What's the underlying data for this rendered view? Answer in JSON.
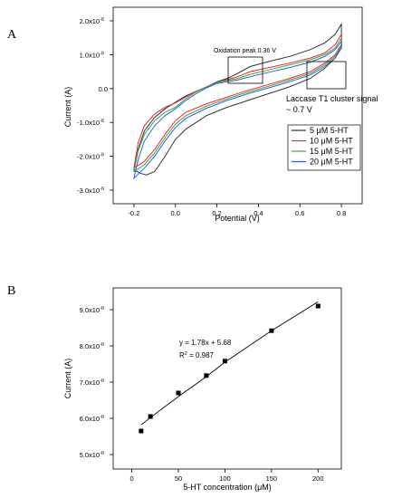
{
  "panel_a_label": "A",
  "panel_b_label": "B",
  "chart_data": [
    {
      "type": "line",
      "xlabel": "Potential (V)",
      "ylabel": "Current (A)",
      "xlim": [
        -0.3,
        0.9
      ],
      "ylim": [
        -3.4,
        2.4
      ],
      "y_multiplier_label": "x10-6",
      "x_ticks": [
        -0.2,
        0.0,
        0.2,
        0.4,
        0.6,
        0.8
      ],
      "x_tick_labels": [
        "-0.2",
        "0.0",
        "0.2",
        "0.4",
        "0.6",
        "0.8"
      ],
      "y_ticks": [
        -3,
        -2,
        -1,
        0,
        1,
        2
      ],
      "y_tick_labels": [
        "-3.0x10",
        "-2.0x10",
        "-1.0x10",
        "0.0",
        "1.0x10",
        "2.0x10"
      ],
      "y_tick_exponent": "-6",
      "legend_position": "right",
      "series": [
        {
          "name": "5 μM 5-HT",
          "color": "#333333",
          "points": [
            [
              -0.2,
              -2.4
            ],
            [
              -0.18,
              -1.8
            ],
            [
              -0.15,
              -1.25
            ],
            [
              -0.1,
              -0.85
            ],
            [
              -0.05,
              -0.6
            ],
            [
              0.0,
              -0.4
            ],
            [
              0.05,
              -0.22
            ],
            [
              0.1,
              -0.08
            ],
            [
              0.15,
              0.05
            ],
            [
              0.2,
              0.2
            ],
            [
              0.25,
              0.3
            ],
            [
              0.3,
              0.45
            ],
            [
              0.36,
              0.65
            ],
            [
              0.45,
              0.8
            ],
            [
              0.55,
              0.95
            ],
            [
              0.65,
              1.15
            ],
            [
              0.72,
              1.35
            ],
            [
              0.77,
              1.6
            ],
            [
              0.8,
              1.9
            ],
            [
              0.8,
              1.2
            ],
            [
              0.77,
              0.9
            ],
            [
              0.72,
              0.6
            ],
            [
              0.65,
              0.3
            ],
            [
              0.55,
              0.05
            ],
            [
              0.45,
              -0.15
            ],
            [
              0.35,
              -0.35
            ],
            [
              0.25,
              -0.55
            ],
            [
              0.15,
              -0.8
            ],
            [
              0.05,
              -1.2
            ],
            [
              0.0,
              -1.5
            ],
            [
              -0.05,
              -2.0
            ],
            [
              -0.1,
              -2.45
            ],
            [
              -0.14,
              -2.55
            ],
            [
              -0.17,
              -2.5
            ],
            [
              -0.2,
              -2.4
            ]
          ]
        },
        {
          "name": "10 μM 5-HT",
          "color": "#e8282a",
          "points": [
            [
              -0.2,
              -2.35
            ],
            [
              -0.18,
              -1.6
            ],
            [
              -0.15,
              -1.1
            ],
            [
              -0.1,
              -0.75
            ],
            [
              -0.05,
              -0.55
            ],
            [
              0.0,
              -0.42
            ],
            [
              0.05,
              -0.25
            ],
            [
              0.1,
              -0.08
            ],
            [
              0.15,
              0.05
            ],
            [
              0.2,
              0.18
            ],
            [
              0.3,
              0.35
            ],
            [
              0.36,
              0.5
            ],
            [
              0.45,
              0.62
            ],
            [
              0.55,
              0.75
            ],
            [
              0.65,
              0.9
            ],
            [
              0.72,
              1.05
            ],
            [
              0.77,
              1.3
            ],
            [
              0.8,
              1.6
            ],
            [
              0.8,
              1.3
            ],
            [
              0.77,
              1.0
            ],
            [
              0.72,
              0.75
            ],
            [
              0.65,
              0.5
            ],
            [
              0.55,
              0.3
            ],
            [
              0.45,
              0.12
            ],
            [
              0.35,
              -0.05
            ],
            [
              0.25,
              -0.25
            ],
            [
              0.15,
              -0.45
            ],
            [
              0.05,
              -0.7
            ],
            [
              0.0,
              -0.95
            ],
            [
              -0.05,
              -1.35
            ],
            [
              -0.1,
              -1.8
            ],
            [
              -0.15,
              -2.15
            ],
            [
              -0.2,
              -2.35
            ]
          ]
        },
        {
          "name": "15 μM 5-HT",
          "color": "#2fa84f",
          "points": [
            [
              -0.2,
              -2.45
            ],
            [
              -0.18,
              -1.85
            ],
            [
              -0.15,
              -1.35
            ],
            [
              -0.1,
              -0.95
            ],
            [
              -0.05,
              -0.7
            ],
            [
              0.0,
              -0.55
            ],
            [
              0.05,
              -0.3
            ],
            [
              0.1,
              -0.1
            ],
            [
              0.15,
              0.05
            ],
            [
              0.2,
              0.18
            ],
            [
              0.3,
              0.3
            ],
            [
              0.36,
              0.42
            ],
            [
              0.45,
              0.55
            ],
            [
              0.55,
              0.7
            ],
            [
              0.65,
              0.85
            ],
            [
              0.72,
              1.0
            ],
            [
              0.77,
              1.2
            ],
            [
              0.8,
              1.5
            ],
            [
              0.8,
              1.25
            ],
            [
              0.77,
              0.95
            ],
            [
              0.72,
              0.7
            ],
            [
              0.65,
              0.45
            ],
            [
              0.55,
              0.25
            ],
            [
              0.45,
              0.07
            ],
            [
              0.35,
              -0.1
            ],
            [
              0.25,
              -0.3
            ],
            [
              0.15,
              -0.52
            ],
            [
              0.05,
              -0.8
            ],
            [
              0.0,
              -1.05
            ],
            [
              -0.05,
              -1.45
            ],
            [
              -0.1,
              -1.9
            ],
            [
              -0.15,
              -2.25
            ],
            [
              -0.2,
              -2.45
            ]
          ]
        },
        {
          "name": "20 μM 5-HT",
          "color": "#2d5fd6",
          "points": [
            [
              -0.2,
              -2.65
            ],
            [
              -0.18,
              -2.1
            ],
            [
              -0.15,
              -1.55
            ],
            [
              -0.1,
              -1.1
            ],
            [
              -0.05,
              -0.8
            ],
            [
              0.0,
              -0.6
            ],
            [
              0.05,
              -0.35
            ],
            [
              0.1,
              -0.15
            ],
            [
              0.15,
              0.02
            ],
            [
              0.2,
              0.15
            ],
            [
              0.3,
              0.25
            ],
            [
              0.36,
              0.35
            ],
            [
              0.45,
              0.48
            ],
            [
              0.55,
              0.62
            ],
            [
              0.65,
              0.78
            ],
            [
              0.72,
              0.95
            ],
            [
              0.77,
              1.15
            ],
            [
              0.8,
              1.4
            ],
            [
              0.8,
              1.2
            ],
            [
              0.77,
              0.9
            ],
            [
              0.72,
              0.65
            ],
            [
              0.65,
              0.4
            ],
            [
              0.55,
              0.2
            ],
            [
              0.45,
              0.02
            ],
            [
              0.35,
              -0.15
            ],
            [
              0.25,
              -0.35
            ],
            [
              0.15,
              -0.58
            ],
            [
              0.05,
              -0.88
            ],
            [
              0.0,
              -1.15
            ],
            [
              -0.05,
              -1.55
            ],
            [
              -0.1,
              -2.0
            ],
            [
              -0.15,
              -2.35
            ],
            [
              -0.2,
              -2.65
            ]
          ]
        }
      ],
      "annotations": {
        "oxidation_peak": "Oxidation peak 0.36 V",
        "laccase_line1": "Laccase T1 cluster signal",
        "laccase_line2": "~ 0.7 V"
      }
    },
    {
      "type": "scatter",
      "xlabel": "5-HT concentration (μM)",
      "ylabel": "Current (A)",
      "xlim": [
        -20,
        225
      ],
      "ylim": [
        4.6,
        9.6
      ],
      "x_ticks": [
        0,
        50,
        100,
        150,
        200
      ],
      "x_tick_labels": [
        "0",
        "50",
        "100",
        "150",
        "200"
      ],
      "y_ticks": [
        5,
        6,
        7,
        8,
        9
      ],
      "y_tick_labels": [
        "5.0x10",
        "6.0x10",
        "7.0x10",
        "8.0x10",
        "9.0x10"
      ],
      "y_tick_exponent": "-6",
      "points": [
        {
          "x": 10,
          "y": 5.65
        },
        {
          "x": 20,
          "y": 6.05
        },
        {
          "x": 50,
          "y": 6.7
        },
        {
          "x": 80,
          "y": 7.18
        },
        {
          "x": 100,
          "y": 7.58
        },
        {
          "x": 150,
          "y": 8.42
        },
        {
          "x": 200,
          "y": 9.1
        }
      ],
      "fit_curve": [
        [
          10,
          5.82
        ],
        [
          20,
          6.02
        ],
        [
          50,
          6.6
        ],
        [
          80,
          7.15
        ],
        [
          100,
          7.55
        ],
        [
          150,
          8.42
        ],
        [
          200,
          9.22
        ]
      ],
      "fit_equation": "y = 1.78x + 5.68",
      "r_squared_label": "R",
      "r_squared_exp": "2",
      "r_squared_value": " = 0.987"
    }
  ]
}
